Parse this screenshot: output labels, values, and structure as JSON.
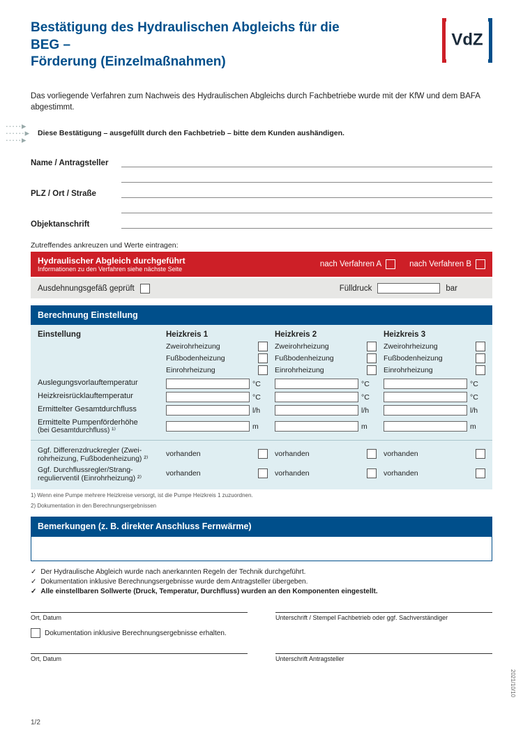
{
  "colors": {
    "primary": "#004f8b",
    "red": "#cd1f27",
    "panel": "#dfeef2",
    "grey": "#e7e7e5"
  },
  "header": {
    "title_line1": "Bestätigung des Hydraulischen Abgleichs für die BEG –",
    "title_line2": "Förderung (Einzelmaßnahmen)",
    "logo_text": "VdZ"
  },
  "intro": "Das vorliegende Verfahren zum Nachweis des Hydraulischen Abgleichs durch Fachbetriebe wurde mit der KfW und dem BAFA abgestimmt.",
  "note": "Diese Bestätigung – ausgefüllt durch den Fachbetrieb – bitte dem Kunden aushändigen.",
  "fields": {
    "name": "Name / Antragsteller",
    "plz": "PLZ / Ort / Straße",
    "obj": "Objektanschrift"
  },
  "instruct": "Zutreffendes ankreuzen und Werte eintragen:",
  "redbar": {
    "title": "Hydraulischer Abgleich durchgeführt",
    "sub": "Informationen zu den Verfahren siehe nächste Seite",
    "optA": "nach  Verfahren  A",
    "optB": "nach  Verfahren  B"
  },
  "greybar": {
    "label1": "Ausdehnungsgefäß geprüft",
    "label2": "Fülldruck",
    "unit": "bar"
  },
  "section_calc": "Berechnung Einstellung",
  "table": {
    "col_setting": "Einstellung",
    "hk": [
      "Heizkreis 1",
      "Heizkreis 2",
      "Heizkreis 3"
    ],
    "types": [
      "Zweirohrheizung",
      "Fußbodenheizung",
      "Einrohrheizung"
    ],
    "rows": [
      {
        "label": "Auslegungsvorlauftemperatur",
        "unit": "°C"
      },
      {
        "label": "Heizkreisrücklauftemperatur",
        "unit": "°C"
      },
      {
        "label": "Ermittelter Gesamtdurchfluss",
        "unit": "l/h"
      },
      {
        "label": "Ermittelte Pumpenförderhöhe",
        "unit": "m"
      }
    ],
    "row4_sub": "(bei Gesamtdurchfluss) ¹⁾",
    "vorhanden": "vorhanden",
    "extra": [
      "Ggf. Differenzdruckregler (Zwei-rohrheizung, Fußbodenheizung) ²⁾",
      "Ggf. Durchflussregler/Strang-regulierventil (Einrohrheizung) ²⁾"
    ]
  },
  "footnotes": [
    "1)  Wenn eine Pumpe mehrere Heizkreise versorgt, ist die Pumpe Heizkreis 1 zuzuordnen.",
    "2)  Dokumentation in den Berechnungsergebnissen"
  ],
  "section_remarks": "Bemerkungen (z. B. direkter Anschluss Fernwärme)",
  "checks": [
    "Der Hydraulische Abgleich wurde nach anerkannten Regeln der Technik durchgeführt.",
    "Dokumentation inklusive Berechnungsergebnisse wurde dem Antragsteller übergeben.",
    "Alle einstellbaren Sollwerte (Druck, Temperatur, Durchfluss) wurden an den Komponenten eingestellt."
  ],
  "sig": {
    "ort": "Ort, Datum",
    "fb": "Unterschrift / Stempel Fachbetrieb oder ggf. Sachverständiger",
    "doc": "Dokumentation inklusive Berechnungsergebnisse erhalten.",
    "antrag": "Unterschrift Antragsteller"
  },
  "page": "1/2",
  "version": "2021/10/10"
}
